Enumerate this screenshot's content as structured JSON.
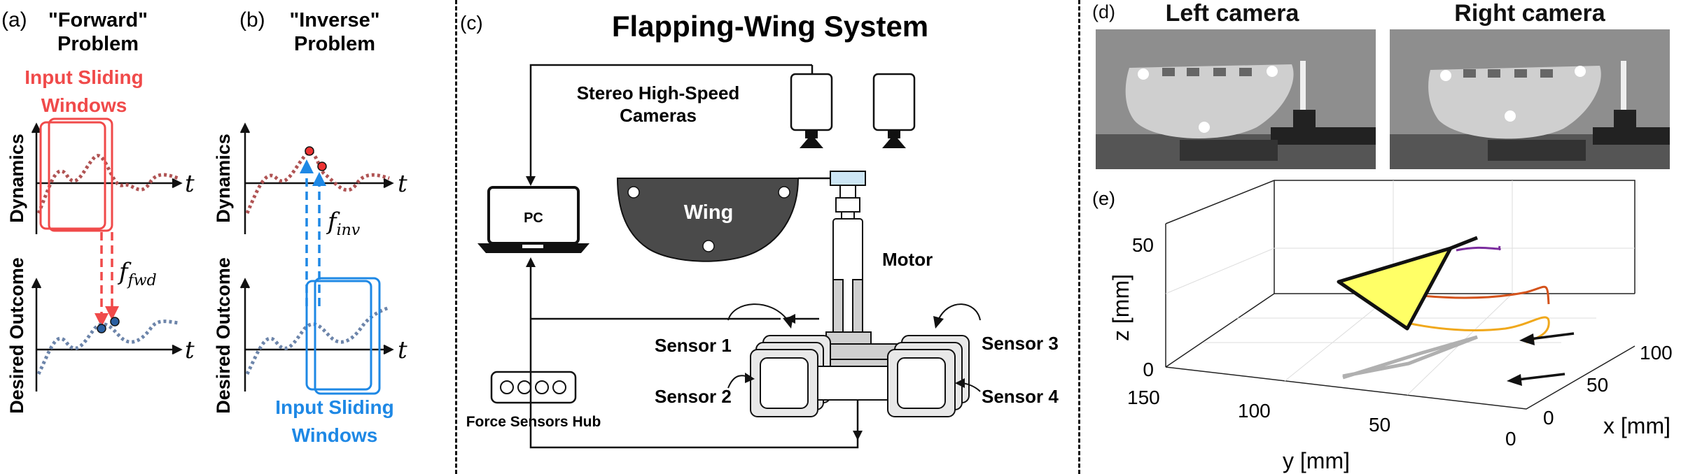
{
  "panel_a": {
    "label": "(a)",
    "title_line1": "\"Forward\"",
    "title_line2": "Problem",
    "windows_line1": "Input Sliding",
    "windows_line2": "Windows",
    "top_ylabel": "Dynamics",
    "bottom_ylabel": "Desired Outcome",
    "t_top": "t",
    "t_bottom": "t",
    "f_main": "f",
    "f_sub": "fwd"
  },
  "panel_b": {
    "label": "(b)",
    "title_line1": "\"Inverse\"",
    "title_line2": "Problem",
    "windows_line1": "Input Sliding",
    "windows_line2": "Windows",
    "top_ylabel": "Dynamics",
    "bottom_ylabel": "Desired Outcome",
    "t_top": "t",
    "t_bottom": "t",
    "f_main": "f",
    "f_sub": "inv"
  },
  "panel_c": {
    "label": "(c)",
    "title": "Flapping-Wing System",
    "cameras_line1": "Stereo High-Speed",
    "cameras_line2": "Cameras",
    "pc": "PC",
    "wing": "Wing",
    "motor": "Motor",
    "sensor1": "Sensor 1",
    "sensor2": "Sensor 2",
    "sensor3": "Sensor 3",
    "sensor4": "Sensor 4",
    "hub": "Force Sensors Hub"
  },
  "panel_d": {
    "label": "(d)",
    "left_title": "Left camera",
    "right_title": "Right camera"
  },
  "panel_e": {
    "label": "(e)",
    "z_label": "z [mm]",
    "y_label": "y [mm]",
    "x_label": "x [mm]",
    "z_ticks": [
      "50",
      "0"
    ],
    "y_ticks": [
      "150",
      "100",
      "50",
      "0"
    ],
    "x_ticks": [
      "100",
      "50",
      "0"
    ]
  },
  "colors": {
    "forward_red": "#f04a4a",
    "inverse_blue": "#1e88e5",
    "dynamics_curve": "#b05454",
    "outcome_curve": "#6d85aa",
    "wing_fill": "#4a4a4a",
    "triangle_fill": "#ffff66"
  }
}
